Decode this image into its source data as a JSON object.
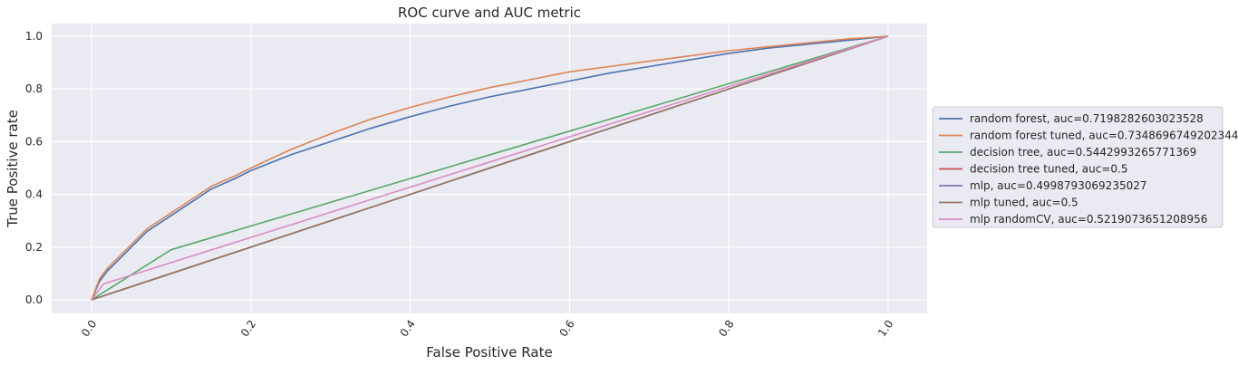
{
  "chart_data": {
    "type": "line",
    "title": "ROC curve and AUC metric",
    "xlabel": "False Positive Rate",
    "ylabel": "True Positive rate",
    "xlim": [
      -0.05,
      1.05
    ],
    "ylim": [
      -0.05,
      1.05
    ],
    "xticks": [
      "0.0",
      "0.2",
      "0.4",
      "0.6",
      "0.8",
      "1.0"
    ],
    "yticks": [
      "0.0",
      "0.2",
      "0.4",
      "0.6",
      "0.8",
      "1.0"
    ],
    "grid": true,
    "legend_position": "right, outside plot",
    "series": [
      {
        "name": "random forest, auc=0.7198282603023528",
        "color": "#4c72b0",
        "x": [
          0,
          0.01,
          0.02,
          0.03,
          0.05,
          0.07,
          0.1,
          0.13,
          0.15,
          0.18,
          0.2,
          0.25,
          0.3,
          0.35,
          0.4,
          0.45,
          0.5,
          0.55,
          0.6,
          0.65,
          0.7,
          0.75,
          0.8,
          0.85,
          0.9,
          0.95,
          1.0
        ],
        "y": [
          0,
          0.07,
          0.11,
          0.14,
          0.2,
          0.26,
          0.32,
          0.38,
          0.42,
          0.46,
          0.49,
          0.55,
          0.6,
          0.65,
          0.695,
          0.735,
          0.77,
          0.8,
          0.83,
          0.86,
          0.885,
          0.91,
          0.935,
          0.955,
          0.97,
          0.985,
          1.0
        ]
      },
      {
        "name": "random forest tuned, auc=0.7348696749202344",
        "color": "#dd8452",
        "x": [
          0,
          0.01,
          0.02,
          0.03,
          0.05,
          0.07,
          0.1,
          0.13,
          0.15,
          0.18,
          0.2,
          0.25,
          0.3,
          0.35,
          0.4,
          0.45,
          0.5,
          0.55,
          0.6,
          0.65,
          0.7,
          0.75,
          0.8,
          0.85,
          0.9,
          0.95,
          1.0
        ],
        "y": [
          0,
          0.08,
          0.12,
          0.15,
          0.21,
          0.27,
          0.33,
          0.39,
          0.43,
          0.47,
          0.5,
          0.57,
          0.63,
          0.685,
          0.73,
          0.77,
          0.805,
          0.835,
          0.865,
          0.885,
          0.905,
          0.925,
          0.945,
          0.96,
          0.975,
          0.99,
          1.0
        ]
      },
      {
        "name": "decision tree, auc=0.5442993265771369",
        "color": "#55a868",
        "x": [
          0,
          0.1,
          1.0
        ],
        "y": [
          0,
          0.19,
          1.0
        ]
      },
      {
        "name": "decision tree tuned, auc=0.5",
        "color": "#c44e52",
        "x": [
          0,
          1.0
        ],
        "y": [
          0,
          1.0
        ]
      },
      {
        "name": "mlp, auc=0.4998793069235027",
        "color": "#8172b3",
        "x": [
          0,
          1.0
        ],
        "y": [
          0,
          1.0
        ]
      },
      {
        "name": "mlp tuned, auc=0.5",
        "color": "#937860",
        "x": [
          0,
          1.0
        ],
        "y": [
          0,
          1.0
        ]
      },
      {
        "name": "mlp randomCV, auc=0.5219073651208956",
        "color": "#da8bc3",
        "x": [
          0,
          0.015,
          1.0
        ],
        "y": [
          0,
          0.06,
          1.0
        ]
      }
    ]
  }
}
